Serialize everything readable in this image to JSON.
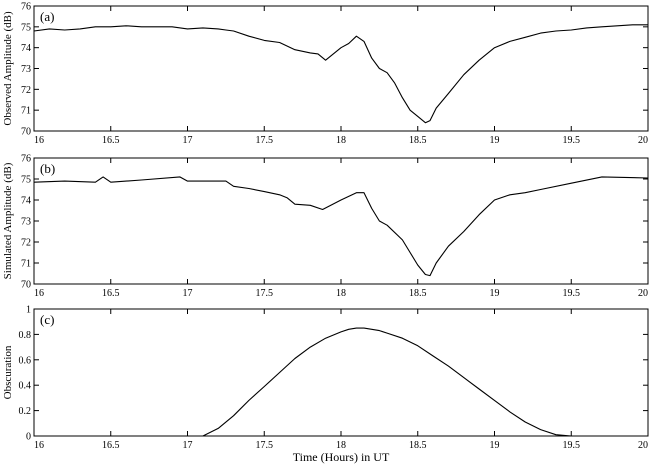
{
  "figure": {
    "xlabel": "Time (Hours) in UT"
  },
  "chart_data": [
    {
      "type": "line",
      "panel_label": "(a)",
      "ylabel": "Observed Amplitude (dB)",
      "xlim": [
        16,
        20
      ],
      "ylim": [
        70,
        76
      ],
      "xticks": [
        16,
        16.5,
        17,
        17.5,
        18,
        18.5,
        19,
        19.5,
        20
      ],
      "xtick_labels": [
        "16",
        "16.5",
        "17",
        "17.5",
        "18",
        "18.5",
        "19",
        "19.5",
        "20"
      ],
      "yticks": [
        70,
        71,
        72,
        73,
        74,
        75,
        76
      ],
      "ytick_labels": [
        "70",
        "71",
        "72",
        "73",
        "74",
        "75",
        "76"
      ],
      "series": [
        {
          "color": "#000000",
          "x": [
            16.0,
            16.1,
            16.2,
            16.3,
            16.4,
            16.5,
            16.6,
            16.7,
            16.8,
            16.9,
            17.0,
            17.1,
            17.2,
            17.25,
            17.3,
            17.4,
            17.5,
            17.6,
            17.7,
            17.8,
            17.85,
            17.9,
            18.0,
            18.05,
            18.1,
            18.15,
            18.2,
            18.25,
            18.3,
            18.35,
            18.4,
            18.45,
            18.5,
            18.55,
            18.58,
            18.62,
            18.7,
            18.8,
            18.9,
            19.0,
            19.1,
            19.2,
            19.3,
            19.4,
            19.5,
            19.6,
            19.7,
            19.8,
            19.9,
            20.0
          ],
          "y": [
            74.8,
            74.9,
            74.85,
            74.9,
            75.0,
            75.0,
            75.05,
            75.0,
            75.0,
            75.0,
            74.9,
            74.95,
            74.9,
            74.85,
            74.8,
            74.55,
            74.35,
            74.25,
            73.9,
            73.75,
            73.7,
            73.4,
            74.0,
            74.2,
            74.55,
            74.3,
            73.5,
            73.0,
            72.8,
            72.3,
            71.6,
            71.0,
            70.7,
            70.4,
            70.5,
            71.1,
            71.8,
            72.7,
            73.4,
            74.0,
            74.3,
            74.5,
            74.7,
            74.8,
            74.85,
            74.95,
            75.0,
            75.05,
            75.1,
            75.1
          ]
        }
      ]
    },
    {
      "type": "line",
      "panel_label": "(b)",
      "ylabel": "Simulated Amplitude (dB)",
      "xlim": [
        16,
        20
      ],
      "ylim": [
        70,
        76
      ],
      "xticks": [
        16,
        16.5,
        17,
        17.5,
        18,
        18.5,
        19,
        19.5,
        20
      ],
      "xtick_labels": [
        "16",
        "16.5",
        "17",
        "17.5",
        "18",
        "18.5",
        "19",
        "19.5",
        "20"
      ],
      "yticks": [
        70,
        71,
        72,
        73,
        74,
        75,
        76
      ],
      "ytick_labels": [
        "70",
        "71",
        "72",
        "73",
        "74",
        "75",
        "76"
      ],
      "series": [
        {
          "color": "#000000",
          "x": [
            16.0,
            16.2,
            16.4,
            16.45,
            16.5,
            16.7,
            16.95,
            17.0,
            17.25,
            17.3,
            17.4,
            17.5,
            17.6,
            17.65,
            17.7,
            17.8,
            17.88,
            18.0,
            18.1,
            18.15,
            18.2,
            18.25,
            18.3,
            18.4,
            18.45,
            18.5,
            18.55,
            18.58,
            18.62,
            18.7,
            18.8,
            18.9,
            19.0,
            19.1,
            19.2,
            19.3,
            19.5,
            19.7,
            20.0
          ],
          "y": [
            74.85,
            74.9,
            74.85,
            75.1,
            74.85,
            74.95,
            75.1,
            74.9,
            74.9,
            74.65,
            74.55,
            74.4,
            74.25,
            74.1,
            73.8,
            73.75,
            73.55,
            74.0,
            74.35,
            74.35,
            73.6,
            73.0,
            72.8,
            72.1,
            71.5,
            70.9,
            70.45,
            70.4,
            71.0,
            71.8,
            72.5,
            73.3,
            74.0,
            74.25,
            74.35,
            74.5,
            74.8,
            75.1,
            75.05
          ]
        }
      ]
    },
    {
      "type": "line",
      "panel_label": "(c)",
      "ylabel": "Obscuration",
      "xlim": [
        16,
        20
      ],
      "ylim": [
        0,
        1
      ],
      "xticks": [
        16,
        16.5,
        17,
        17.5,
        18,
        18.5,
        19,
        19.5,
        20
      ],
      "xtick_labels": [
        "16",
        "16.5",
        "17",
        "17.5",
        "18",
        "18.5",
        "19",
        "19.5",
        "20"
      ],
      "yticks": [
        0,
        0.2,
        0.4,
        0.6,
        0.8,
        1
      ],
      "ytick_labels": [
        "0",
        "0.2",
        "0.4",
        "0.6",
        "0.8",
        "1"
      ],
      "series": [
        {
          "color": "#000000",
          "x": [
            17.1,
            17.2,
            17.3,
            17.4,
            17.5,
            17.6,
            17.7,
            17.8,
            17.9,
            18.0,
            18.05,
            18.1,
            18.15,
            18.2,
            18.25,
            18.3,
            18.4,
            18.5,
            18.6,
            18.7,
            18.8,
            18.9,
            19.0,
            19.1,
            19.2,
            19.3,
            19.4,
            19.5
          ],
          "y": [
            0.0,
            0.06,
            0.16,
            0.28,
            0.39,
            0.5,
            0.61,
            0.7,
            0.77,
            0.82,
            0.84,
            0.85,
            0.85,
            0.84,
            0.83,
            0.81,
            0.77,
            0.71,
            0.63,
            0.55,
            0.46,
            0.37,
            0.28,
            0.19,
            0.11,
            0.05,
            0.01,
            0.0
          ]
        }
      ]
    }
  ]
}
